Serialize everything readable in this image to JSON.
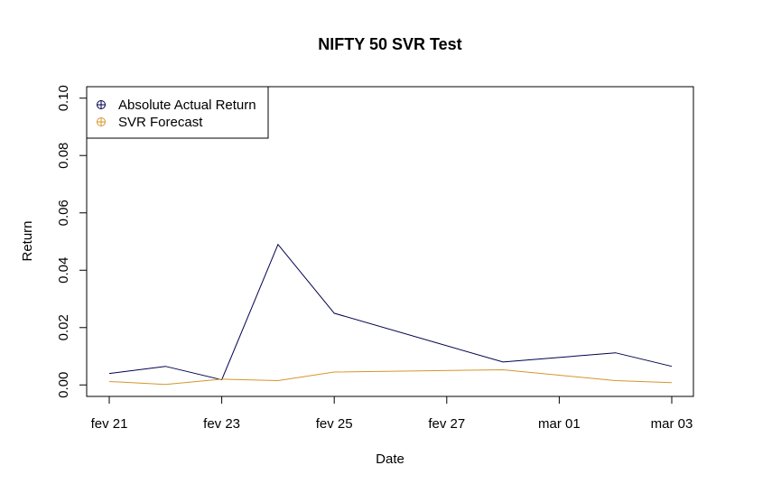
{
  "chart_data": {
    "type": "line",
    "title": "NIFTY 50 SVR Test",
    "xlabel": "Date",
    "ylabel": "Return",
    "x": [
      "2022-02-21",
      "2022-02-22",
      "2022-02-23",
      "2022-02-24",
      "2022-02-25",
      "2022-02-28",
      "2022-03-02",
      "2022-03-03"
    ],
    "x_ticks": [
      {
        "date": "2022-02-21",
        "label": "fev 21"
      },
      {
        "date": "2022-02-23",
        "label": "fev 23"
      },
      {
        "date": "2022-02-25",
        "label": "fev 25"
      },
      {
        "date": "2022-02-27",
        "label": "fev 27"
      },
      {
        "date": "2022-03-01",
        "label": "mar 01"
      },
      {
        "date": "2022-03-03",
        "label": "mar 03"
      }
    ],
    "y_ticks": [
      {
        "value": 0.0,
        "label": "0.00"
      },
      {
        "value": 0.02,
        "label": "0.02"
      },
      {
        "value": 0.04,
        "label": "0.04"
      },
      {
        "value": 0.06,
        "label": "0.06"
      },
      {
        "value": 0.08,
        "label": "0.08"
      },
      {
        "value": 0.1,
        "label": "0.10"
      }
    ],
    "xlim": [
      "2022-02-20",
      "2022-03-03"
    ],
    "ylim": [
      -0.004,
      0.104
    ],
    "grid": false,
    "legend_position": "top-left",
    "series": [
      {
        "name": "Absolute Actual Return",
        "color": "#00004d",
        "values": [
          0.004,
          0.0065,
          0.0018,
          0.049,
          0.025,
          0.008,
          0.0112,
          0.0065
        ]
      },
      {
        "name": "SVR Forecast",
        "color": "#d4962b",
        "values": [
          0.0012,
          0.0002,
          0.002,
          0.0015,
          0.0045,
          0.0053,
          0.0015,
          0.0008
        ]
      }
    ]
  }
}
